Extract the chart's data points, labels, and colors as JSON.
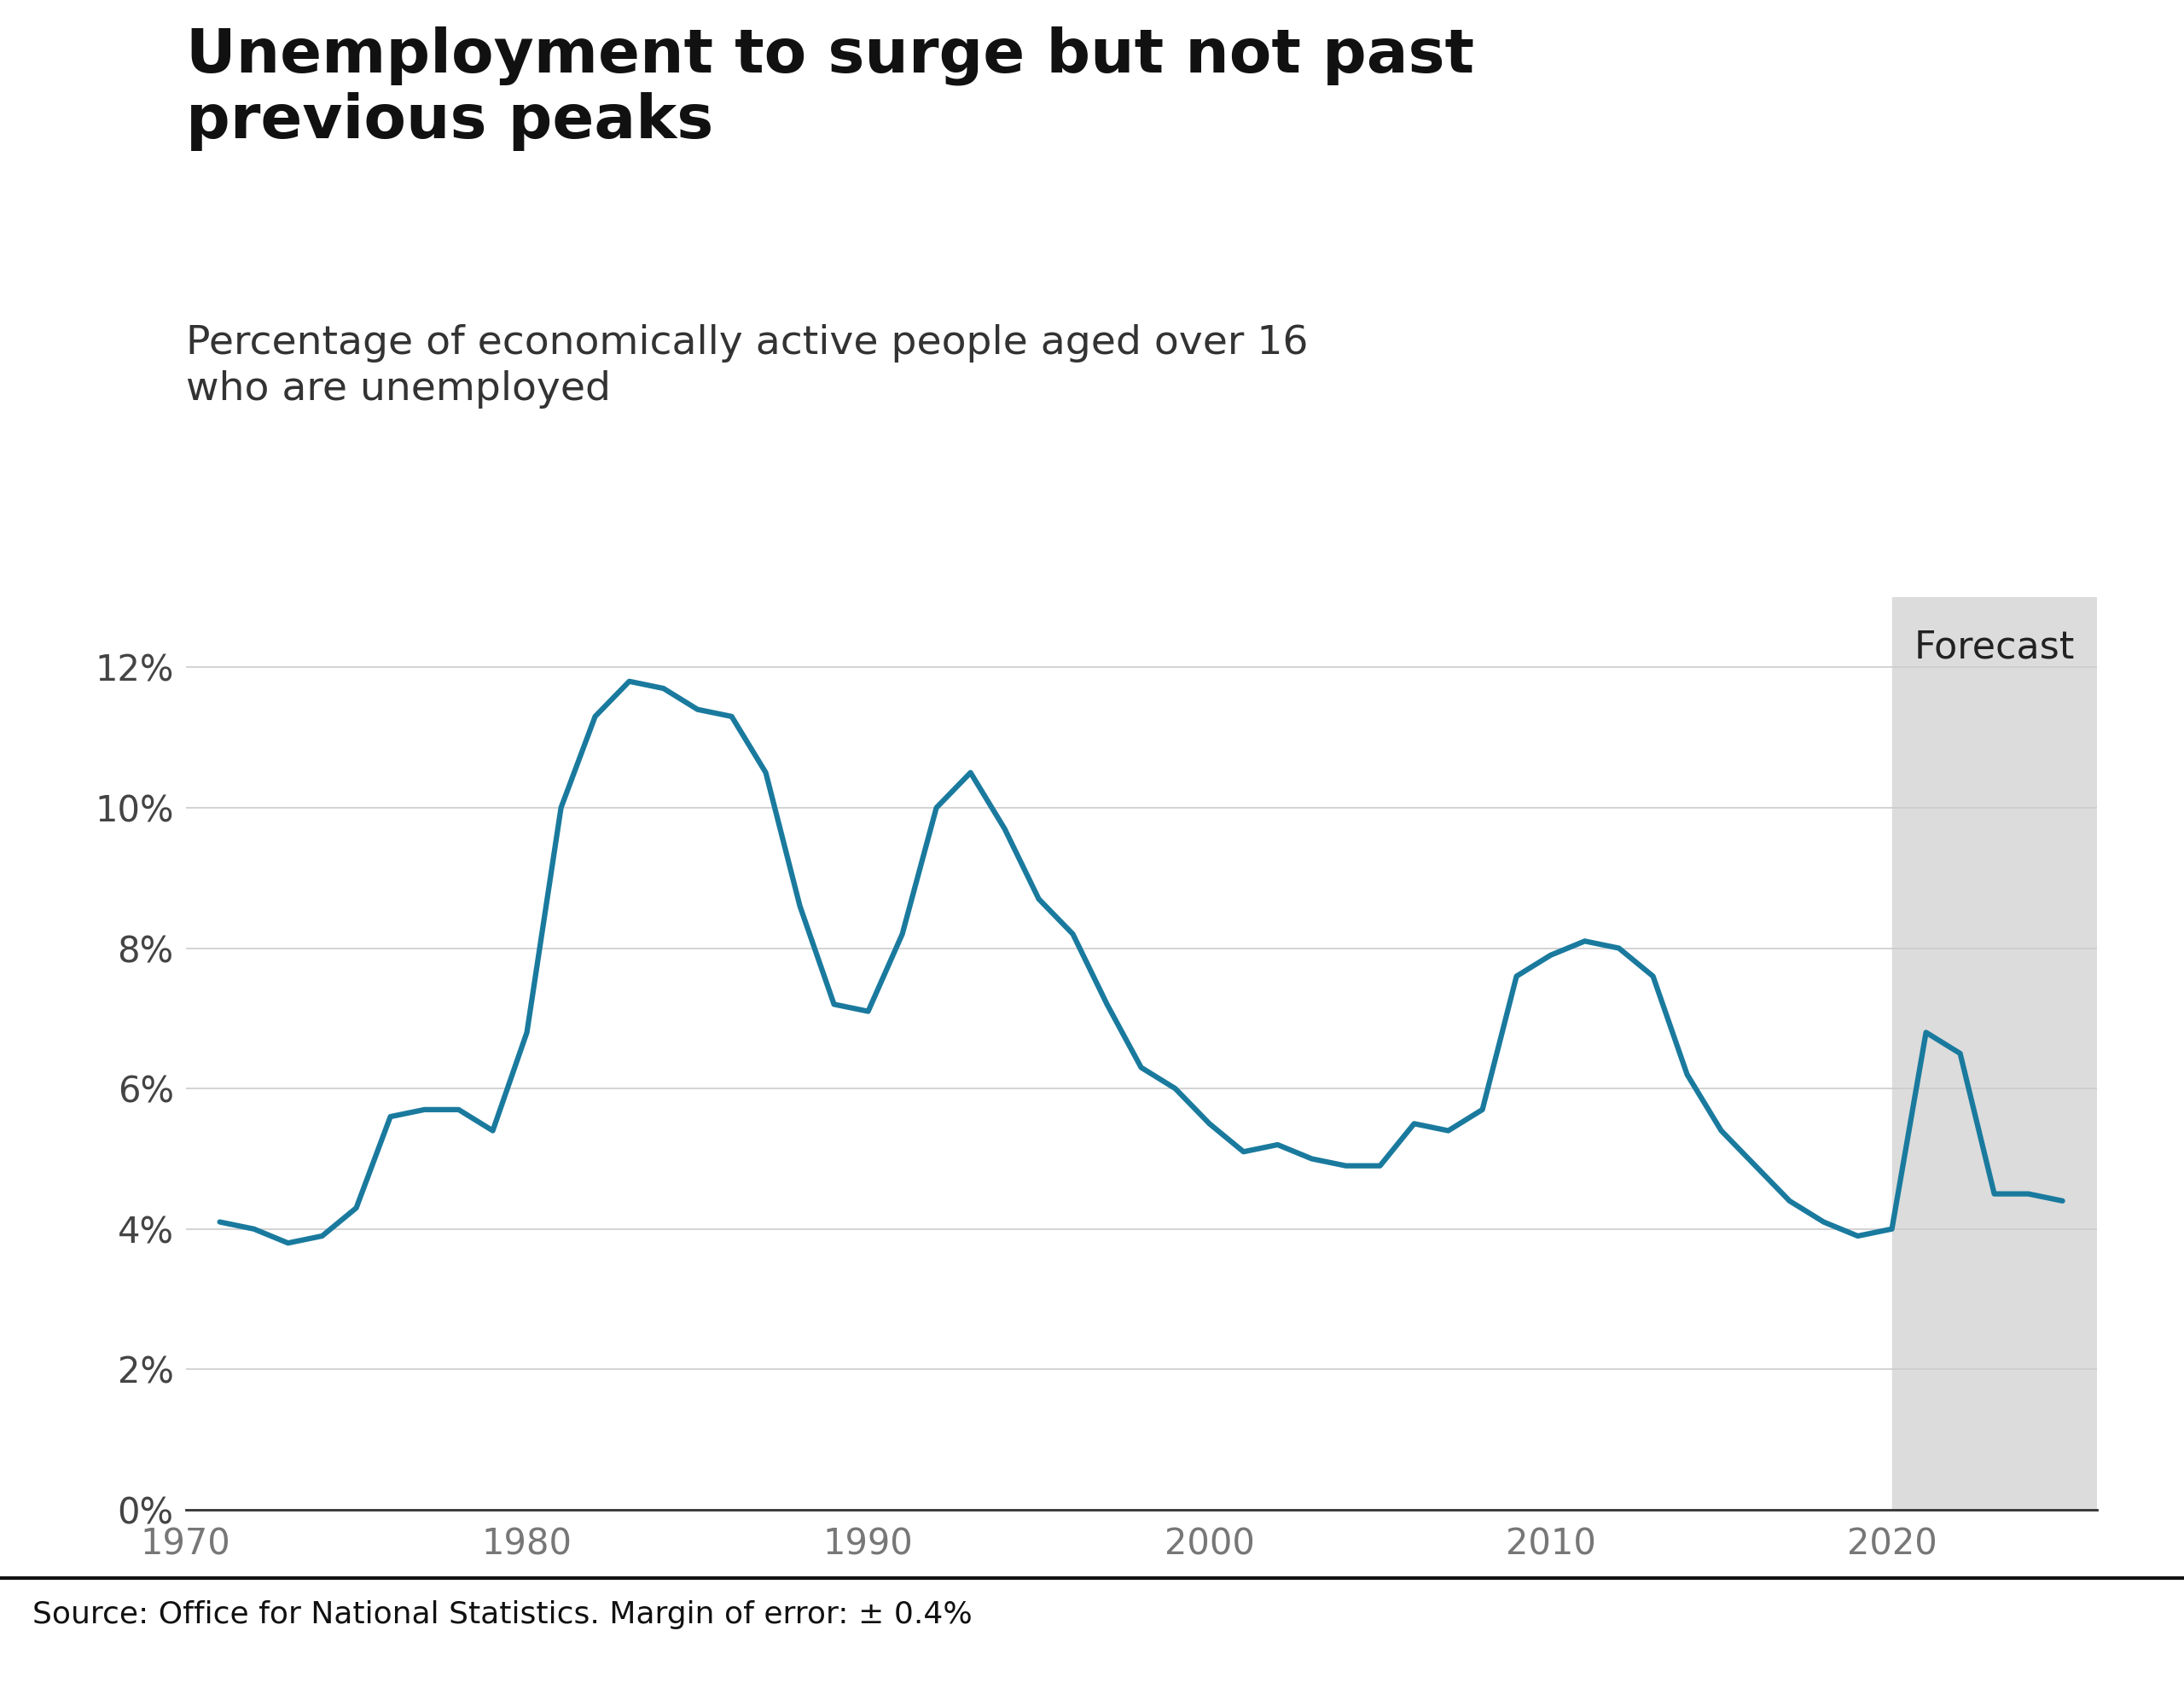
{
  "title": "Unemployment to surge but not past\nprevious peaks",
  "subtitle": "Percentage of economically active people aged over 16\nwho are unemployed",
  "source": "Source: Office for National Statistics. Margin of error: ± 0.4%",
  "line_color": "#1a7a9e",
  "line_width": 4.5,
  "forecast_start": 2020,
  "forecast_end": 2026,
  "forecast_label": "Forecast",
  "forecast_bg": "#dcdcdc",
  "years": [
    1971,
    1972,
    1973,
    1974,
    1975,
    1976,
    1977,
    1978,
    1979,
    1980,
    1981,
    1982,
    1983,
    1984,
    1985,
    1986,
    1987,
    1988,
    1989,
    1990,
    1991,
    1992,
    1993,
    1994,
    1995,
    1996,
    1997,
    1998,
    1999,
    2000,
    2001,
    2002,
    2003,
    2004,
    2005,
    2006,
    2007,
    2008,
    2009,
    2010,
    2011,
    2012,
    2013,
    2014,
    2015,
    2016,
    2017,
    2018,
    2019,
    2020,
    2021,
    2022,
    2023,
    2024,
    2025
  ],
  "values": [
    4.1,
    4.0,
    3.8,
    3.9,
    4.3,
    5.6,
    5.7,
    5.7,
    5.4,
    6.8,
    10.0,
    11.3,
    11.8,
    11.7,
    11.4,
    11.3,
    10.5,
    8.6,
    7.2,
    7.1,
    8.2,
    10.0,
    10.5,
    9.7,
    8.7,
    8.2,
    7.2,
    6.3,
    6.0,
    5.5,
    5.1,
    5.2,
    5.0,
    4.9,
    4.9,
    5.5,
    5.4,
    5.7,
    7.6,
    7.9,
    8.1,
    8.0,
    7.6,
    6.2,
    5.4,
    4.9,
    4.4,
    4.1,
    3.9,
    4.0,
    6.8,
    6.5,
    4.5,
    4.5,
    4.4
  ],
  "xlim": [
    1970,
    2026
  ],
  "ylim": [
    0,
    13
  ],
  "yticks": [
    0,
    2,
    4,
    6,
    8,
    10,
    12
  ],
  "xticks": [
    1970,
    1980,
    1990,
    2000,
    2010,
    2020
  ],
  "bg_color": "#ffffff",
  "title_fontsize": 52,
  "subtitle_fontsize": 34,
  "tick_fontsize": 30,
  "source_fontsize": 26,
  "forecast_fontsize": 32
}
